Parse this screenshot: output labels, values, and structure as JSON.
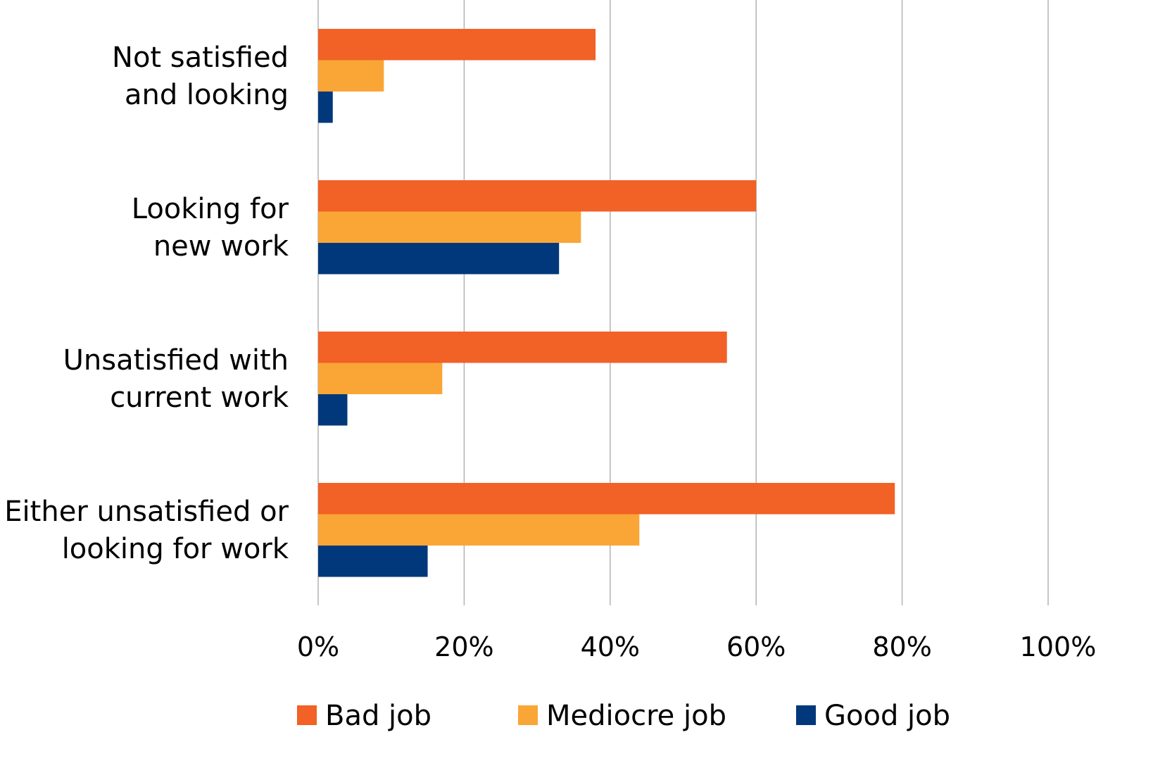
{
  "chart_data": {
    "type": "bar",
    "orientation": "horizontal",
    "title": "",
    "xlabel": "",
    "ylabel": "",
    "categories": [
      [
        "Not satisfied",
        "and looking"
      ],
      [
        "Looking for",
        "new work"
      ],
      [
        "Unsatisfied with",
        "current work"
      ],
      [
        "Either unsatisfied or",
        "looking for work"
      ]
    ],
    "series": [
      {
        "name": "Bad job",
        "color": "#F26125",
        "values": [
          38,
          60,
          56,
          79
        ]
      },
      {
        "name": "Mediocre job",
        "color": "#F9A636",
        "values": [
          9,
          36,
          17,
          44
        ]
      },
      {
        "name": "Good job",
        "color": "#00387B",
        "values": [
          2,
          33,
          4,
          15
        ]
      }
    ],
    "xlim": [
      0,
      100
    ],
    "x_ticks": [
      0,
      20,
      40,
      60,
      80,
      100
    ],
    "x_tick_labels": [
      "0%",
      "20%",
      "40%",
      "60%",
      "80%",
      "100%"
    ],
    "grid": true,
    "legend_position": "bottom"
  }
}
